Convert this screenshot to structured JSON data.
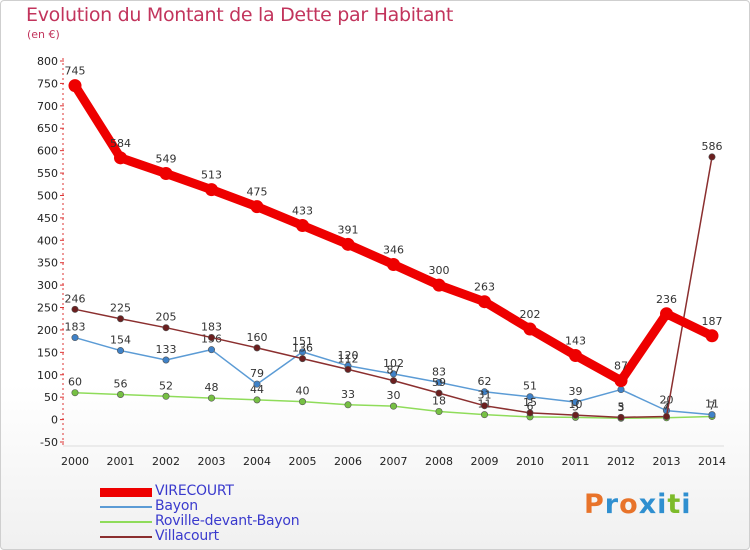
{
  "title": "Evolution du Montant de la Dette par Habitant",
  "subtitle": "(en €)",
  "logo": {
    "text": "Proxiti",
    "colors": [
      "#e8732a",
      "#2f8fd0",
      "#e8732a",
      "#2f8fd0",
      "#2f8fd0",
      "#7dbb2a",
      "#2f8fd0"
    ]
  },
  "chart_data": {
    "type": "line",
    "x": [
      "2000",
      "2001",
      "2002",
      "2003",
      "2004",
      "2005",
      "2006",
      "2007",
      "2008",
      "2009",
      "2010",
      "2011",
      "2012",
      "2013",
      "2014"
    ],
    "ylim": [
      -50,
      800
    ],
    "yticks": [
      -50,
      0,
      50,
      100,
      150,
      200,
      250,
      300,
      350,
      400,
      450,
      500,
      550,
      600,
      650,
      700,
      750,
      800
    ],
    "grid": false,
    "legend_position": "bottom-left",
    "series": [
      {
        "name": "Roville-devant-Bayon",
        "color": "#8fdc5a",
        "marker": "#76c043",
        "values": [
          60,
          56,
          52,
          48,
          44,
          40,
          33,
          30,
          18,
          11,
          6,
          5,
          3,
          4,
          7
        ],
        "labels": [
          "60",
          "56",
          "52",
          "48",
          "44",
          "40",
          "33",
          "30",
          "18",
          "11",
          "6",
          "5",
          "3",
          "4",
          "7"
        ]
      },
      {
        "name": "Bayon",
        "color": "#5b9bd5",
        "marker": "#3f82c8",
        "values": [
          183,
          154,
          133,
          156,
          79,
          151,
          120,
          102,
          83,
          62,
          51,
          39,
          67,
          20,
          11
        ],
        "labels": [
          "183",
          "154",
          "133",
          "156",
          "79",
          "151",
          "120",
          "102",
          "83",
          "62",
          "51",
          "39",
          "67",
          "20",
          "11"
        ]
      },
      {
        "name": "Villacourt",
        "color": "#8b2f2f",
        "marker": "#6b1f1f",
        "values": [
          246,
          225,
          205,
          183,
          160,
          136,
          112,
          87,
          59,
          31,
          15,
          10,
          5,
          7,
          586
        ],
        "labels": [
          "246",
          "225",
          "205",
          "183",
          "160",
          "136",
          "112",
          "87",
          "59",
          "31",
          "15",
          "10",
          "5",
          "7",
          "586"
        ]
      },
      {
        "name": "VIRECOURT",
        "color": "#ee0000",
        "marker": "#ee0000",
        "values": [
          745,
          584,
          549,
          513,
          475,
          433,
          391,
          346,
          300,
          263,
          202,
          143,
          87,
          236,
          187
        ],
        "labels": [
          "745",
          "584",
          "549",
          "513",
          "475",
          "433",
          "391",
          "346",
          "300",
          "263",
          "202",
          "143",
          "87",
          "236",
          "187"
        ]
      }
    ],
    "legend_order": [
      "VIRECOURT",
      "Bayon",
      "Roville-devant-Bayon",
      "Villacourt"
    ]
  }
}
